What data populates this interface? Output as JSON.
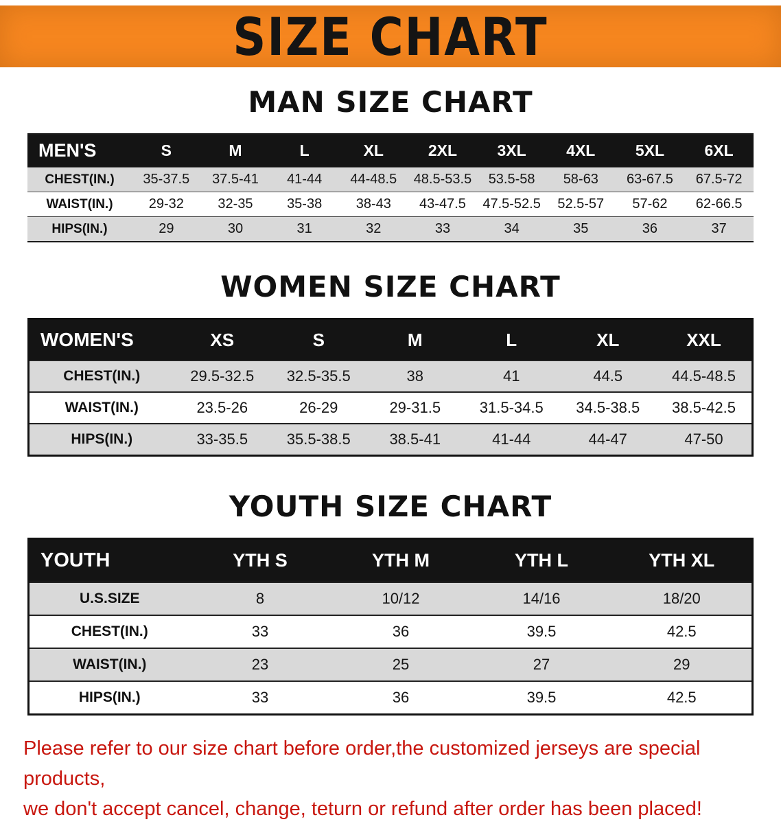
{
  "banner": {
    "title": "SIZE CHART"
  },
  "colors": {
    "banner_bg": "#F6861F",
    "table_header_bg": "#141414",
    "row_stripe_gray": "#D9D9D9",
    "notice_red": "#C8170F"
  },
  "sections": [
    {
      "heading": "MAN SIZE CHART",
      "table": {
        "corner": "MEN'S",
        "columns": [
          "S",
          "M",
          "L",
          "XL",
          "2XL",
          "3XL",
          "4XL",
          "5XL",
          "6XL"
        ],
        "rows": [
          {
            "label": "CHEST(IN.)",
            "values": [
              "35-37.5",
              "37.5-41",
              "41-44",
              "44-48.5",
              "48.5-53.5",
              "53.5-58",
              "58-63",
              "63-67.5",
              "67.5-72"
            ]
          },
          {
            "label": "WAIST(IN.)",
            "values": [
              "29-32",
              "32-35",
              "35-38",
              "38-43",
              "43-47.5",
              "47.5-52.5",
              "52.5-57",
              "57-62",
              "62-66.5"
            ]
          },
          {
            "label": "HIPS(IN.)",
            "values": [
              "29",
              "30",
              "31",
              "32",
              "33",
              "34",
              "35",
              "36",
              "37"
            ]
          }
        ]
      }
    },
    {
      "heading": "WOMEN SIZE CHART",
      "table": {
        "corner": "WOMEN'S",
        "columns": [
          "XS",
          "S",
          "M",
          "L",
          "XL",
          "XXL"
        ],
        "rows": [
          {
            "label": "CHEST(IN.)",
            "values": [
              "29.5-32.5",
              "32.5-35.5",
              "38",
              "41",
              "44.5",
              "44.5-48.5"
            ]
          },
          {
            "label": "WAIST(IN.)",
            "values": [
              "23.5-26",
              "26-29",
              "29-31.5",
              "31.5-34.5",
              "34.5-38.5",
              "38.5-42.5"
            ]
          },
          {
            "label": "HIPS(IN.)",
            "values": [
              "33-35.5",
              "35.5-38.5",
              "38.5-41",
              "41-44",
              "44-47",
              "47-50"
            ]
          }
        ]
      }
    },
    {
      "heading": "YOUTH SIZE CHART",
      "table": {
        "corner": "YOUTH",
        "columns": [
          "YTH S",
          "YTH M",
          "YTH L",
          "YTH XL"
        ],
        "rows": [
          {
            "label": "U.S.SIZE",
            "values": [
              "8",
              "10/12",
              "14/16",
              "18/20"
            ]
          },
          {
            "label": "CHEST(IN.)",
            "values": [
              "33",
              "36",
              "39.5",
              "42.5"
            ]
          },
          {
            "label": "WAIST(IN.)",
            "values": [
              "23",
              "25",
              "27",
              "29"
            ]
          },
          {
            "label": "HIPS(IN.)",
            "values": [
              "33",
              "36",
              "39.5",
              "42.5"
            ]
          }
        ]
      }
    }
  ],
  "footer": {
    "line1": "Please refer to our size chart before order,the customized jerseys are special products,",
    "line2": "we don't accept cancel, change, teturn or refund after order has been placed!"
  }
}
